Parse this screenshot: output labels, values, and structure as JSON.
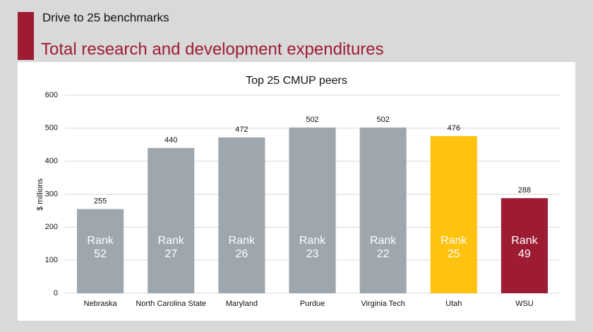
{
  "header": {
    "kicker": "Drive to 25 benchmarks",
    "title": "Total research and development expenditures"
  },
  "chart_data": {
    "type": "bar",
    "title": "Top 25 CMUP peers",
    "y_label": "$ millions",
    "categories": [
      "Nebraska",
      "North Carolina State",
      "Maryland",
      "Purdue",
      "Virginia Tech",
      "Utah",
      "WSU"
    ],
    "values": [
      255,
      440,
      472,
      502,
      502,
      476,
      288
    ],
    "colors": [
      "#9ea7ad",
      "#9ea7ad",
      "#9ea7ad",
      "#9ea7ad",
      "#9ea7ad",
      "#ffc20e",
      "#9d1c33"
    ],
    "rank_word": "Rank",
    "ranks": [
      52,
      27,
      26,
      23,
      22,
      25,
      49
    ],
    "ylim": [
      0,
      600
    ],
    "yticks": [
      0,
      100,
      200,
      300,
      400,
      500,
      600
    ],
    "grid": true
  }
}
